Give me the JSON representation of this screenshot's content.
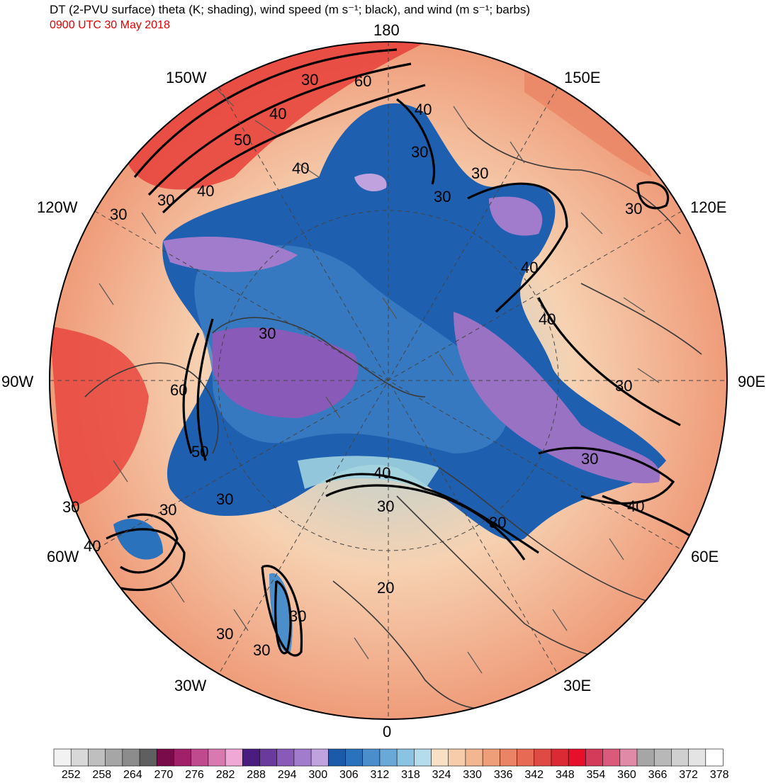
{
  "header": {
    "title": "DT (2-PVU surface) theta (K; shading), wind speed (m s⁻¹; black), and wind (m s⁻¹; barbs)",
    "valid_time": "0900 UTC 30 May 2018"
  },
  "map": {
    "projection": "north-polar-stereographic",
    "longitude_labels": [
      "180",
      "150E",
      "120E",
      "90E",
      "60E",
      "30E",
      "0",
      "30W",
      "60W",
      "90W",
      "120W",
      "150W"
    ],
    "contour_labels": [
      "30",
      "40",
      "50",
      "60",
      "40",
      "30",
      "30",
      "30",
      "40",
      "40",
      "30",
      "30",
      "40",
      "30",
      "40",
      "60",
      "50",
      "30",
      "30",
      "30",
      "40",
      "40",
      "30",
      "30",
      "30",
      "20",
      "30",
      "30",
      "30",
      "40",
      "30",
      "30"
    ],
    "colors": {
      "polar_low": "#1f5fb0",
      "mid": "#9fd3e0",
      "warm": "#f4b08a",
      "hot": "#e8403a",
      "ring": "#000000"
    }
  },
  "colorbar": {
    "labels": [
      "252",
      "258",
      "264",
      "270",
      "276",
      "282",
      "288",
      "294",
      "300",
      "306",
      "312",
      "318",
      "324",
      "330",
      "336",
      "342",
      "348",
      "354",
      "360",
      "366",
      "372",
      "378"
    ],
    "colors": [
      "#f2f2f2",
      "#d8d8d8",
      "#bfbfbf",
      "#a6a6a6",
      "#8c8c8c",
      "#5f5f5f",
      "#7a0b4a",
      "#a0206a",
      "#c04a8e",
      "#d87ab0",
      "#f0a8d6",
      "#4a1c80",
      "#6a3a9c",
      "#8a5ab8",
      "#a27ccc",
      "#bfa2de",
      "#1a5aa8",
      "#2a72bc",
      "#4a8ecc",
      "#6aa8d8",
      "#8ac4e2",
      "#b4dcec",
      "#f8e0c4",
      "#f6ccaa",
      "#f2b690",
      "#ee9e78",
      "#ea8464",
      "#e66a54",
      "#e04a44",
      "#dc2a34",
      "#e6102a",
      "#d43a5a",
      "#da5a7c",
      "#e08aa8",
      "#a6a6a6",
      "#b8b8b8",
      "#d0d0d0",
      "#e4e4e4",
      "#ffffff"
    ]
  }
}
